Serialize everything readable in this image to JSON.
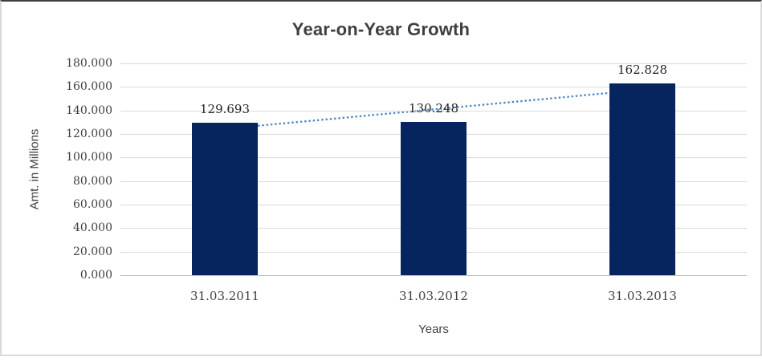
{
  "chart_data": {
    "type": "bar",
    "title": "Year-on-Year Growth",
    "categories": [
      "31.03.2011",
      "31.03.2012",
      "31.03.2013"
    ],
    "values": [
      129.693,
      130.248,
      162.828
    ],
    "value_labels": [
      "129.693",
      "130.248",
      "162.828"
    ],
    "xlabel": "Years",
    "ylabel": "Amt. in Millions",
    "ylim": [
      0,
      180
    ],
    "ytick_step": 20,
    "ytick_labels": [
      "0.000",
      "20.000",
      "40.000",
      "60.000",
      "80.000",
      "100.000",
      "120.000",
      "140.000",
      "160.000",
      "180.000"
    ],
    "grid": true,
    "legend": "none",
    "trendline": {
      "type": "linear",
      "style": "dotted"
    }
  },
  "colors": {
    "bar": "#06245e",
    "trend": "#4a86c8",
    "grid": "#d9d9d9",
    "axis": "#bfbfbf",
    "title_text": "#3f3f3f",
    "axis_text": "#404040"
  }
}
